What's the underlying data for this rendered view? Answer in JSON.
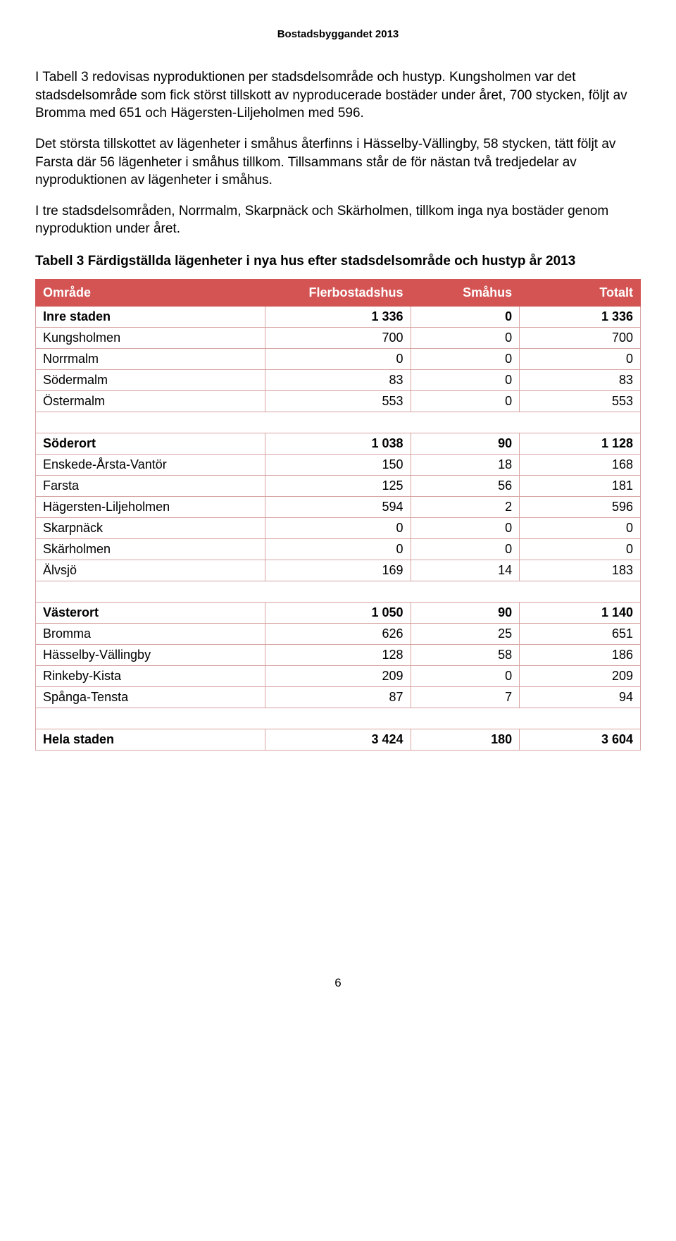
{
  "doc_header": "Bostadsbyggandet 2013",
  "para1": "I Tabell 3 redovisas nyproduktionen per stadsdelsområde och hustyp. Kungsholmen var det stadsdelsområde som fick störst tillskott av nyproducerade bostäder under året, 700 stycken, följt av Bromma med 651 och Hägersten-Liljeholmen med 596.",
  "para2": "Det största tillskottet av lägenheter i småhus återfinns i Hässelby-Vällingby, 58 stycken, tätt följt av Farsta där 56 lägenheter i småhus tillkom. Tillsammans står de för nästan två tredjedelar av nyproduktionen av lägenheter i småhus.",
  "para3": "I tre stadsdelsområden, Norrmalm, Skarpnäck och Skärholmen, tillkom inga nya bostäder genom nyproduktion under året.",
  "table_caption": "Tabell 3 Färdigställda lägenheter i nya hus efter stadsdelsområde och hustyp år 2013",
  "table": {
    "header_bg": "#d35453",
    "header_fg": "#ffffff",
    "border_color": "#d7a3a2",
    "columns": [
      "Område",
      "Flerbostadshus",
      "Småhus",
      "Totalt"
    ],
    "rows": [
      {
        "kind": "section",
        "cells": [
          "Inre staden",
          "1 336",
          "0",
          "1 336"
        ]
      },
      {
        "kind": "row",
        "cells": [
          "Kungsholmen",
          "700",
          "0",
          "700"
        ]
      },
      {
        "kind": "row",
        "cells": [
          "Norrmalm",
          "0",
          "0",
          "0"
        ]
      },
      {
        "kind": "row",
        "cells": [
          "Södermalm",
          "83",
          "0",
          "83"
        ]
      },
      {
        "kind": "row",
        "cells": [
          "Östermalm",
          "553",
          "0",
          "553"
        ]
      },
      {
        "kind": "spacer"
      },
      {
        "kind": "section",
        "cells": [
          "Söderort",
          "1 038",
          "90",
          "1 128"
        ]
      },
      {
        "kind": "row",
        "cells": [
          "Enskede-Årsta-Vantör",
          "150",
          "18",
          "168"
        ]
      },
      {
        "kind": "row",
        "cells": [
          "Farsta",
          "125",
          "56",
          "181"
        ]
      },
      {
        "kind": "row",
        "cells": [
          "Hägersten-Liljeholmen",
          "594",
          "2",
          "596"
        ]
      },
      {
        "kind": "row",
        "cells": [
          "Skarpnäck",
          "0",
          "0",
          "0"
        ]
      },
      {
        "kind": "row",
        "cells": [
          "Skärholmen",
          "0",
          "0",
          "0"
        ]
      },
      {
        "kind": "row",
        "cells": [
          "Älvsjö",
          "169",
          "14",
          "183"
        ]
      },
      {
        "kind": "spacer"
      },
      {
        "kind": "section",
        "cells": [
          "Västerort",
          "1 050",
          "90",
          "1 140"
        ]
      },
      {
        "kind": "row",
        "cells": [
          "Bromma",
          "626",
          "25",
          "651"
        ]
      },
      {
        "kind": "row",
        "cells": [
          "Hässelby-Vällingby",
          "128",
          "58",
          "186"
        ]
      },
      {
        "kind": "row",
        "cells": [
          "Rinkeby-Kista",
          "209",
          "0",
          "209"
        ]
      },
      {
        "kind": "row",
        "cells": [
          "Spånga-Tensta",
          "87",
          "7",
          "94"
        ]
      },
      {
        "kind": "spacer"
      },
      {
        "kind": "total",
        "cells": [
          "Hela staden",
          "3 424",
          "180",
          "3 604"
        ]
      }
    ]
  },
  "page_number": "6"
}
